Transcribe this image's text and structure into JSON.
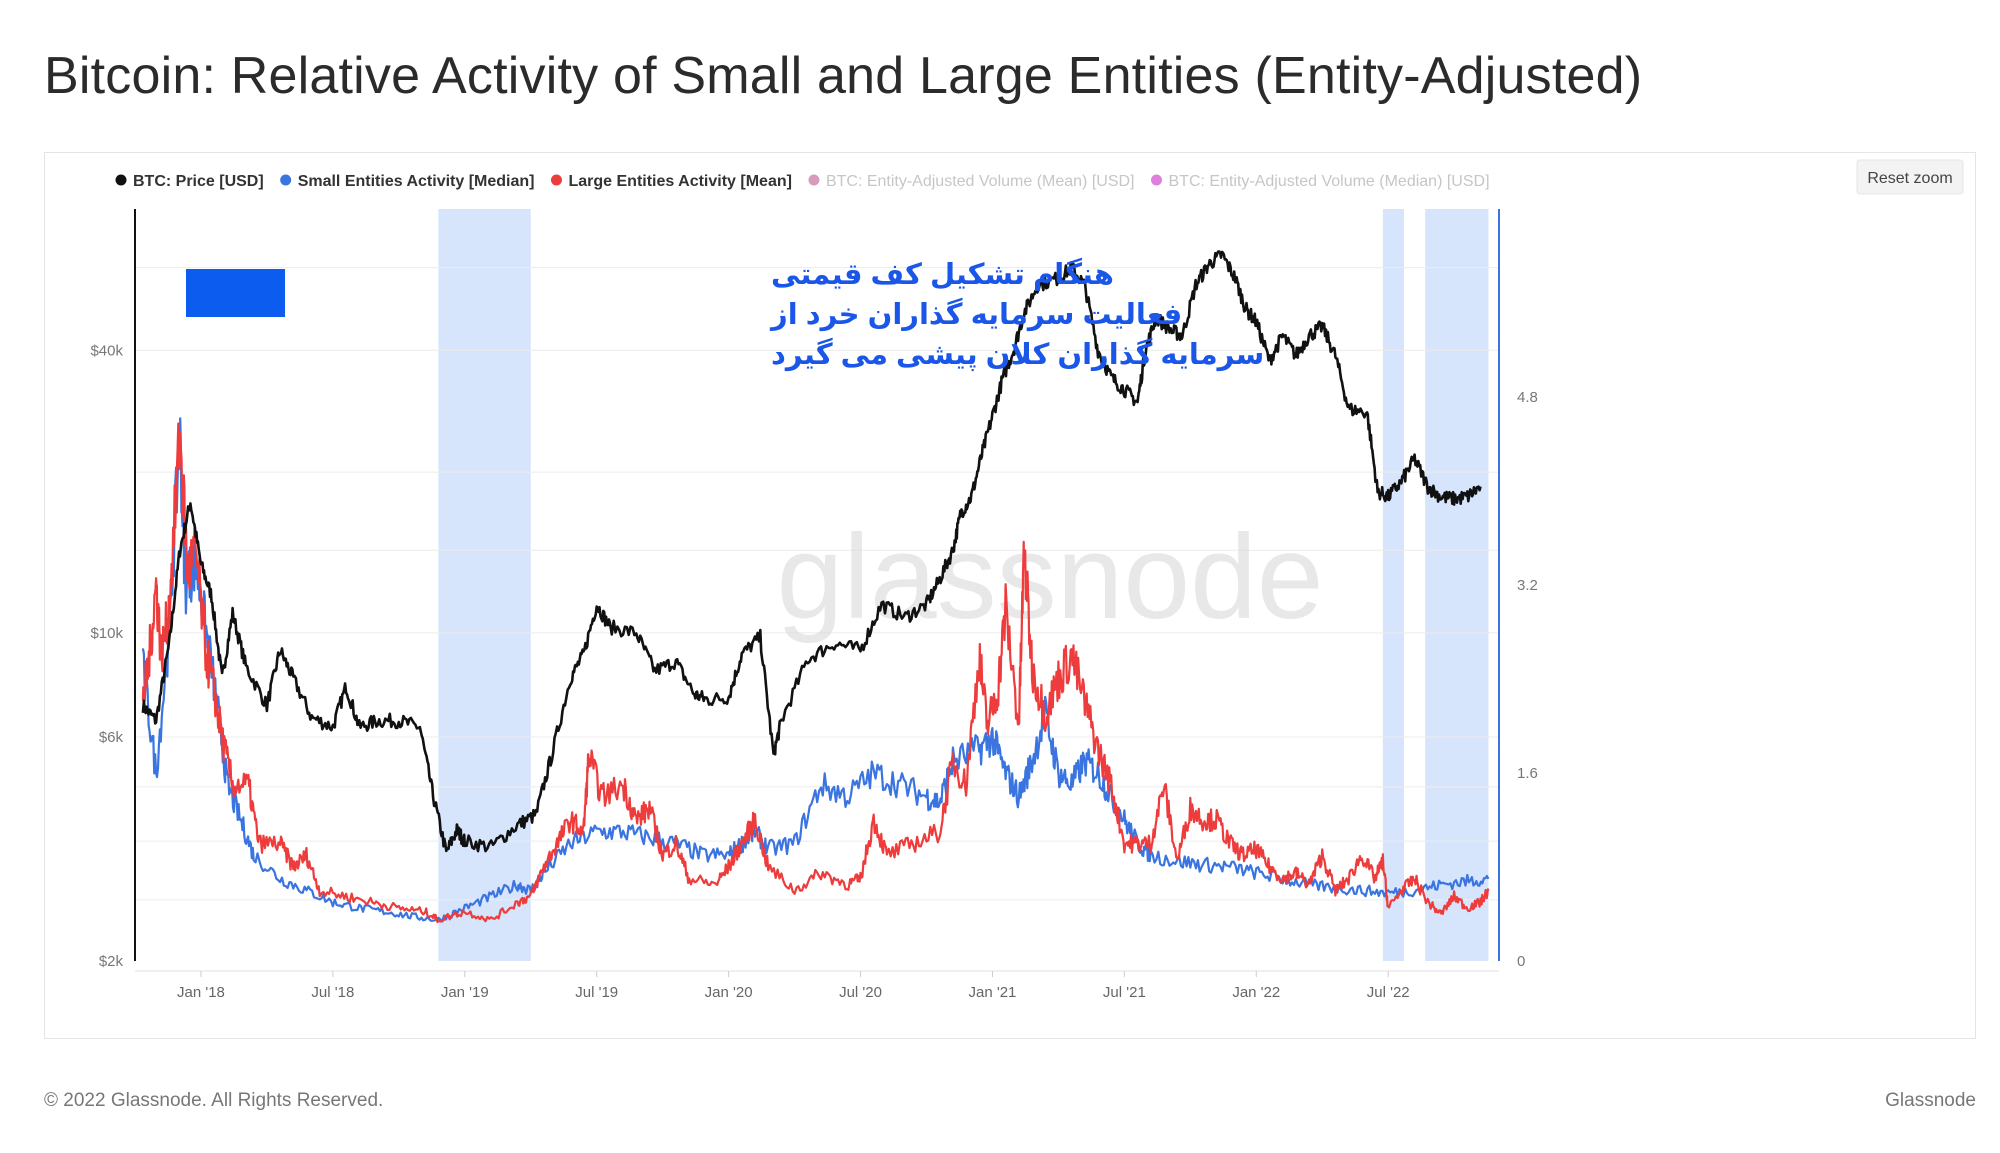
{
  "title": "Bitcoin: Relative Activity of Small and Large Entities (Entity-Adjusted)",
  "footer": {
    "copyright": "© 2022 Glassnode. All Rights Reserved.",
    "brand": "Glassnode"
  },
  "reset_zoom": "Reset zoom",
  "watermark": "glassnode",
  "annotation": {
    "lines": [
      "هنگام تشکیل کف قیمتی",
      "فعالیت سرمایه گذاران خرد از",
      "سرمایه گذاران کلان پیشی می گیرد"
    ],
    "box_color": "#0d5cf0",
    "text_color": "#1a56e8"
  },
  "chart_data": {
    "type": "line",
    "title": "Bitcoin: Relative Activity of Small and Large Entities (Entity-Adjusted)",
    "x_range": [
      2017.75,
      2022.92
    ],
    "x_ticks": [
      {
        "label": "Jan '18",
        "value": 2018.0
      },
      {
        "label": "Jul '18",
        "value": 2018.5
      },
      {
        "label": "Jan '19",
        "value": 2019.0
      },
      {
        "label": "Jul '19",
        "value": 2019.5
      },
      {
        "label": "Jan '20",
        "value": 2020.0
      },
      {
        "label": "Jul '20",
        "value": 2020.5
      },
      {
        "label": "Jan '21",
        "value": 2021.0
      },
      {
        "label": "Jul '21",
        "value": 2021.5
      },
      {
        "label": "Jan '22",
        "value": 2022.0
      },
      {
        "label": "Jul '22",
        "value": 2022.5
      }
    ],
    "y_left": {
      "scale": "log",
      "range": [
        2000,
        80000
      ],
      "ticks": [
        {
          "label": "$2k",
          "value": 2000
        },
        {
          "label": "$6k",
          "value": 6000
        },
        {
          "label": "$10k",
          "value": 10000
        },
        {
          "label": "$40k",
          "value": 40000
        }
      ],
      "grid_values": [
        2700,
        3600,
        4700,
        6000,
        10000,
        15000,
        22000,
        40000,
        60000
      ]
    },
    "y_right": {
      "scale": "linear",
      "range": [
        0,
        6.4
      ],
      "ticks": [
        {
          "label": "0",
          "value": 0
        },
        {
          "label": "1.6",
          "value": 1.6
        },
        {
          "label": "3.2",
          "value": 3.2
        },
        {
          "label": "4.8",
          "value": 4.8
        }
      ]
    },
    "legend": [
      {
        "label": "BTC: Price [USD]",
        "color": "#111111",
        "active": true
      },
      {
        "label": "Small Entities Activity [Median]",
        "color": "#3a74e0",
        "active": true
      },
      {
        "label": "Large Entities Activity [Mean]",
        "color": "#ee3b3b",
        "active": true
      },
      {
        "label": "BTC: Entity-Adjusted Volume (Mean) [USD]",
        "color": "#c2387f",
        "active": false
      },
      {
        "label": "BTC: Entity-Adjusted Volume (Median) [USD]",
        "color": "#d43bd0",
        "active": false
      }
    ],
    "highlight_ranges": [
      [
        2018.9,
        2019.25
      ],
      [
        2022.48,
        2022.56
      ],
      [
        2022.64,
        2022.88
      ]
    ],
    "series": [
      {
        "name": "BTC: Price [USD]",
        "axis": "left",
        "color": "#111111",
        "points": [
          [
            2017.78,
            7000
          ],
          [
            2017.83,
            6500
          ],
          [
            2017.88,
            9500
          ],
          [
            2017.92,
            15000
          ],
          [
            2017.96,
            19000
          ],
          [
            2018.0,
            14000
          ],
          [
            2018.04,
            12000
          ],
          [
            2018.08,
            8000
          ],
          [
            2018.12,
            11000
          ],
          [
            2018.17,
            8500
          ],
          [
            2018.25,
            7000
          ],
          [
            2018.3,
            9200
          ],
          [
            2018.35,
            8000
          ],
          [
            2018.42,
            6600
          ],
          [
            2018.5,
            6300
          ],
          [
            2018.55,
            7700
          ],
          [
            2018.6,
            6300
          ],
          [
            2018.67,
            6500
          ],
          [
            2018.75,
            6500
          ],
          [
            2018.83,
            6300
          ],
          [
            2018.88,
            4500
          ],
          [
            2018.93,
            3400
          ],
          [
            2018.97,
            3800
          ],
          [
            2019.0,
            3600
          ],
          [
            2019.1,
            3500
          ],
          [
            2019.2,
            3900
          ],
          [
            2019.27,
            4100
          ],
          [
            2019.33,
            5500
          ],
          [
            2019.4,
            8000
          ],
          [
            2019.45,
            9000
          ],
          [
            2019.5,
            11500
          ],
          [
            2019.55,
            10300
          ],
          [
            2019.65,
            10000
          ],
          [
            2019.72,
            8300
          ],
          [
            2019.8,
            8700
          ],
          [
            2019.87,
            7400
          ],
          [
            2019.92,
            7200
          ],
          [
            2020.0,
            7300
          ],
          [
            2020.05,
            9000
          ],
          [
            2020.12,
            9800
          ],
          [
            2020.17,
            5500
          ],
          [
            2020.2,
            6500
          ],
          [
            2020.3,
            8800
          ],
          [
            2020.4,
            9500
          ],
          [
            2020.5,
            9200
          ],
          [
            2020.58,
            11500
          ],
          [
            2020.67,
            10800
          ],
          [
            2020.75,
            11500
          ],
          [
            2020.8,
            13000
          ],
          [
            2020.85,
            15000
          ],
          [
            2020.88,
            18000
          ],
          [
            2020.92,
            19500
          ],
          [
            2020.96,
            24000
          ],
          [
            2021.0,
            29000
          ],
          [
            2021.04,
            35000
          ],
          [
            2021.08,
            40000
          ],
          [
            2021.12,
            48000
          ],
          [
            2021.17,
            55000
          ],
          [
            2021.25,
            57000
          ],
          [
            2021.3,
            60000
          ],
          [
            2021.35,
            55000
          ],
          [
            2021.4,
            40000
          ],
          [
            2021.45,
            35000
          ],
          [
            2021.5,
            33000
          ],
          [
            2021.55,
            31000
          ],
          [
            2021.58,
            40000
          ],
          [
            2021.62,
            47000
          ],
          [
            2021.68,
            44000
          ],
          [
            2021.72,
            43000
          ],
          [
            2021.77,
            55000
          ],
          [
            2021.82,
            61000
          ],
          [
            2021.87,
            64000
          ],
          [
            2021.92,
            57000
          ],
          [
            2021.96,
            49000
          ],
          [
            2022.0,
            46000
          ],
          [
            2022.05,
            38000
          ],
          [
            2022.1,
            43000
          ],
          [
            2022.15,
            39000
          ],
          [
            2022.2,
            43000
          ],
          [
            2022.25,
            45000
          ],
          [
            2022.3,
            39000
          ],
          [
            2022.35,
            30000
          ],
          [
            2022.42,
            29500
          ],
          [
            2022.46,
            20000
          ],
          [
            2022.5,
            19500
          ],
          [
            2022.55,
            21000
          ],
          [
            2022.6,
            23500
          ],
          [
            2022.65,
            20500
          ],
          [
            2022.7,
            19500
          ],
          [
            2022.75,
            19300
          ],
          [
            2022.8,
            19500
          ],
          [
            2022.85,
            20500
          ]
        ]
      },
      {
        "name": "Small Entities Activity [Median]",
        "axis": "right",
        "color": "#3a74e0",
        "points": [
          [
            2017.78,
            2.5
          ],
          [
            2017.83,
            1.6
          ],
          [
            2017.88,
            2.8
          ],
          [
            2017.92,
            4.5
          ],
          [
            2017.94,
            3.2
          ],
          [
            2017.98,
            3.4
          ],
          [
            2018.02,
            2.8
          ],
          [
            2018.06,
            2.2
          ],
          [
            2018.1,
            1.5
          ],
          [
            2018.15,
            1.2
          ],
          [
            2018.2,
            0.9
          ],
          [
            2018.3,
            0.7
          ],
          [
            2018.4,
            0.6
          ],
          [
            2018.5,
            0.5
          ],
          [
            2018.6,
            0.45
          ],
          [
            2018.7,
            0.42
          ],
          [
            2018.8,
            0.38
          ],
          [
            2018.9,
            0.35
          ],
          [
            2019.0,
            0.45
          ],
          [
            2019.1,
            0.55
          ],
          [
            2019.2,
            0.65
          ],
          [
            2019.25,
            0.6
          ],
          [
            2019.3,
            0.75
          ],
          [
            2019.4,
            1.0
          ],
          [
            2019.5,
            1.1
          ],
          [
            2019.6,
            1.1
          ],
          [
            2019.7,
            1.05
          ],
          [
            2019.8,
            1.0
          ],
          [
            2019.9,
            0.9
          ],
          [
            2020.0,
            0.9
          ],
          [
            2020.05,
            1.0
          ],
          [
            2020.1,
            1.1
          ],
          [
            2020.15,
            0.95
          ],
          [
            2020.25,
            1.0
          ],
          [
            2020.35,
            1.5
          ],
          [
            2020.45,
            1.4
          ],
          [
            2020.55,
            1.6
          ],
          [
            2020.65,
            1.5
          ],
          [
            2020.75,
            1.4
          ],
          [
            2020.8,
            1.35
          ],
          [
            2020.85,
            1.7
          ],
          [
            2020.95,
            1.8
          ],
          [
            2021.0,
            1.9
          ],
          [
            2021.05,
            1.6
          ],
          [
            2021.1,
            1.4
          ],
          [
            2021.15,
            1.7
          ],
          [
            2021.2,
            2.1
          ],
          [
            2021.25,
            1.6
          ],
          [
            2021.3,
            1.5
          ],
          [
            2021.35,
            1.7
          ],
          [
            2021.4,
            1.6
          ],
          [
            2021.45,
            1.4
          ],
          [
            2021.5,
            1.2
          ],
          [
            2021.55,
            1.0
          ],
          [
            2021.6,
            0.9
          ],
          [
            2021.7,
            0.85
          ],
          [
            2021.8,
            0.82
          ],
          [
            2021.9,
            0.8
          ],
          [
            2022.0,
            0.75
          ],
          [
            2022.1,
            0.7
          ],
          [
            2022.2,
            0.65
          ],
          [
            2022.3,
            0.62
          ],
          [
            2022.4,
            0.6
          ],
          [
            2022.5,
            0.58
          ],
          [
            2022.6,
            0.6
          ],
          [
            2022.7,
            0.65
          ],
          [
            2022.8,
            0.68
          ],
          [
            2022.88,
            0.7
          ]
        ]
      },
      {
        "name": "Large Entities Activity [Mean]",
        "axis": "right",
        "color": "#ee3b3b",
        "points": [
          [
            2017.78,
            2.2
          ],
          [
            2017.8,
            2.5
          ],
          [
            2017.83,
            3.2
          ],
          [
            2017.85,
            2.6
          ],
          [
            2017.88,
            3.0
          ],
          [
            2017.92,
            4.5
          ],
          [
            2017.95,
            3.3
          ],
          [
            2017.98,
            3.5
          ],
          [
            2018.02,
            2.6
          ],
          [
            2018.05,
            2.3
          ],
          [
            2018.08,
            1.9
          ],
          [
            2018.12,
            1.5
          ],
          [
            2018.18,
            1.5
          ],
          [
            2018.22,
            1.0
          ],
          [
            2018.3,
            1.0
          ],
          [
            2018.35,
            0.8
          ],
          [
            2018.4,
            0.9
          ],
          [
            2018.45,
            0.6
          ],
          [
            2018.55,
            0.55
          ],
          [
            2018.65,
            0.5
          ],
          [
            2018.75,
            0.45
          ],
          [
            2018.85,
            0.42
          ],
          [
            2018.9,
            0.35
          ],
          [
            2019.0,
            0.42
          ],
          [
            2019.1,
            0.35
          ],
          [
            2019.2,
            0.5
          ],
          [
            2019.25,
            0.55
          ],
          [
            2019.3,
            0.8
          ],
          [
            2019.35,
            1.0
          ],
          [
            2019.4,
            1.2
          ],
          [
            2019.45,
            1.1
          ],
          [
            2019.47,
            1.75
          ],
          [
            2019.52,
            1.4
          ],
          [
            2019.6,
            1.5
          ],
          [
            2019.65,
            1.2
          ],
          [
            2019.7,
            1.3
          ],
          [
            2019.75,
            0.9
          ],
          [
            2019.8,
            1.0
          ],
          [
            2019.85,
            0.7
          ],
          [
            2019.95,
            0.65
          ],
          [
            2020.0,
            0.8
          ],
          [
            2020.05,
            1.0
          ],
          [
            2020.1,
            1.2
          ],
          [
            2020.15,
            0.8
          ],
          [
            2020.25,
            0.6
          ],
          [
            2020.35,
            0.75
          ],
          [
            2020.45,
            0.65
          ],
          [
            2020.5,
            0.7
          ],
          [
            2020.55,
            1.2
          ],
          [
            2020.6,
            0.9
          ],
          [
            2020.7,
            1.0
          ],
          [
            2020.8,
            1.1
          ],
          [
            2020.85,
            1.7
          ],
          [
            2020.9,
            1.5
          ],
          [
            2020.95,
            2.6
          ],
          [
            2020.98,
            2.0
          ],
          [
            2021.02,
            2.3
          ],
          [
            2021.05,
            3.0
          ],
          [
            2021.1,
            2.0
          ],
          [
            2021.12,
            3.5
          ],
          [
            2021.15,
            2.5
          ],
          [
            2021.2,
            2.1
          ],
          [
            2021.25,
            2.4
          ],
          [
            2021.3,
            2.6
          ],
          [
            2021.35,
            2.2
          ],
          [
            2021.4,
            1.8
          ],
          [
            2021.45,
            1.5
          ],
          [
            2021.5,
            1.0
          ],
          [
            2021.55,
            1.0
          ],
          [
            2021.6,
            1.0
          ],
          [
            2021.65,
            1.5
          ],
          [
            2021.7,
            0.85
          ],
          [
            2021.75,
            1.3
          ],
          [
            2021.8,
            1.2
          ],
          [
            2021.85,
            1.2
          ],
          [
            2021.9,
            1.0
          ],
          [
            2021.95,
            0.9
          ],
          [
            2022.0,
            0.95
          ],
          [
            2022.05,
            0.8
          ],
          [
            2022.1,
            0.7
          ],
          [
            2022.15,
            0.75
          ],
          [
            2022.2,
            0.65
          ],
          [
            2022.25,
            0.9
          ],
          [
            2022.3,
            0.6
          ],
          [
            2022.35,
            0.7
          ],
          [
            2022.4,
            0.9
          ],
          [
            2022.45,
            0.7
          ],
          [
            2022.48,
            0.85
          ],
          [
            2022.5,
            0.45
          ],
          [
            2022.55,
            0.6
          ],
          [
            2022.6,
            0.7
          ],
          [
            2022.65,
            0.5
          ],
          [
            2022.7,
            0.4
          ],
          [
            2022.75,
            0.55
          ],
          [
            2022.8,
            0.45
          ],
          [
            2022.85,
            0.5
          ],
          [
            2022.88,
            0.6
          ]
        ]
      }
    ]
  }
}
